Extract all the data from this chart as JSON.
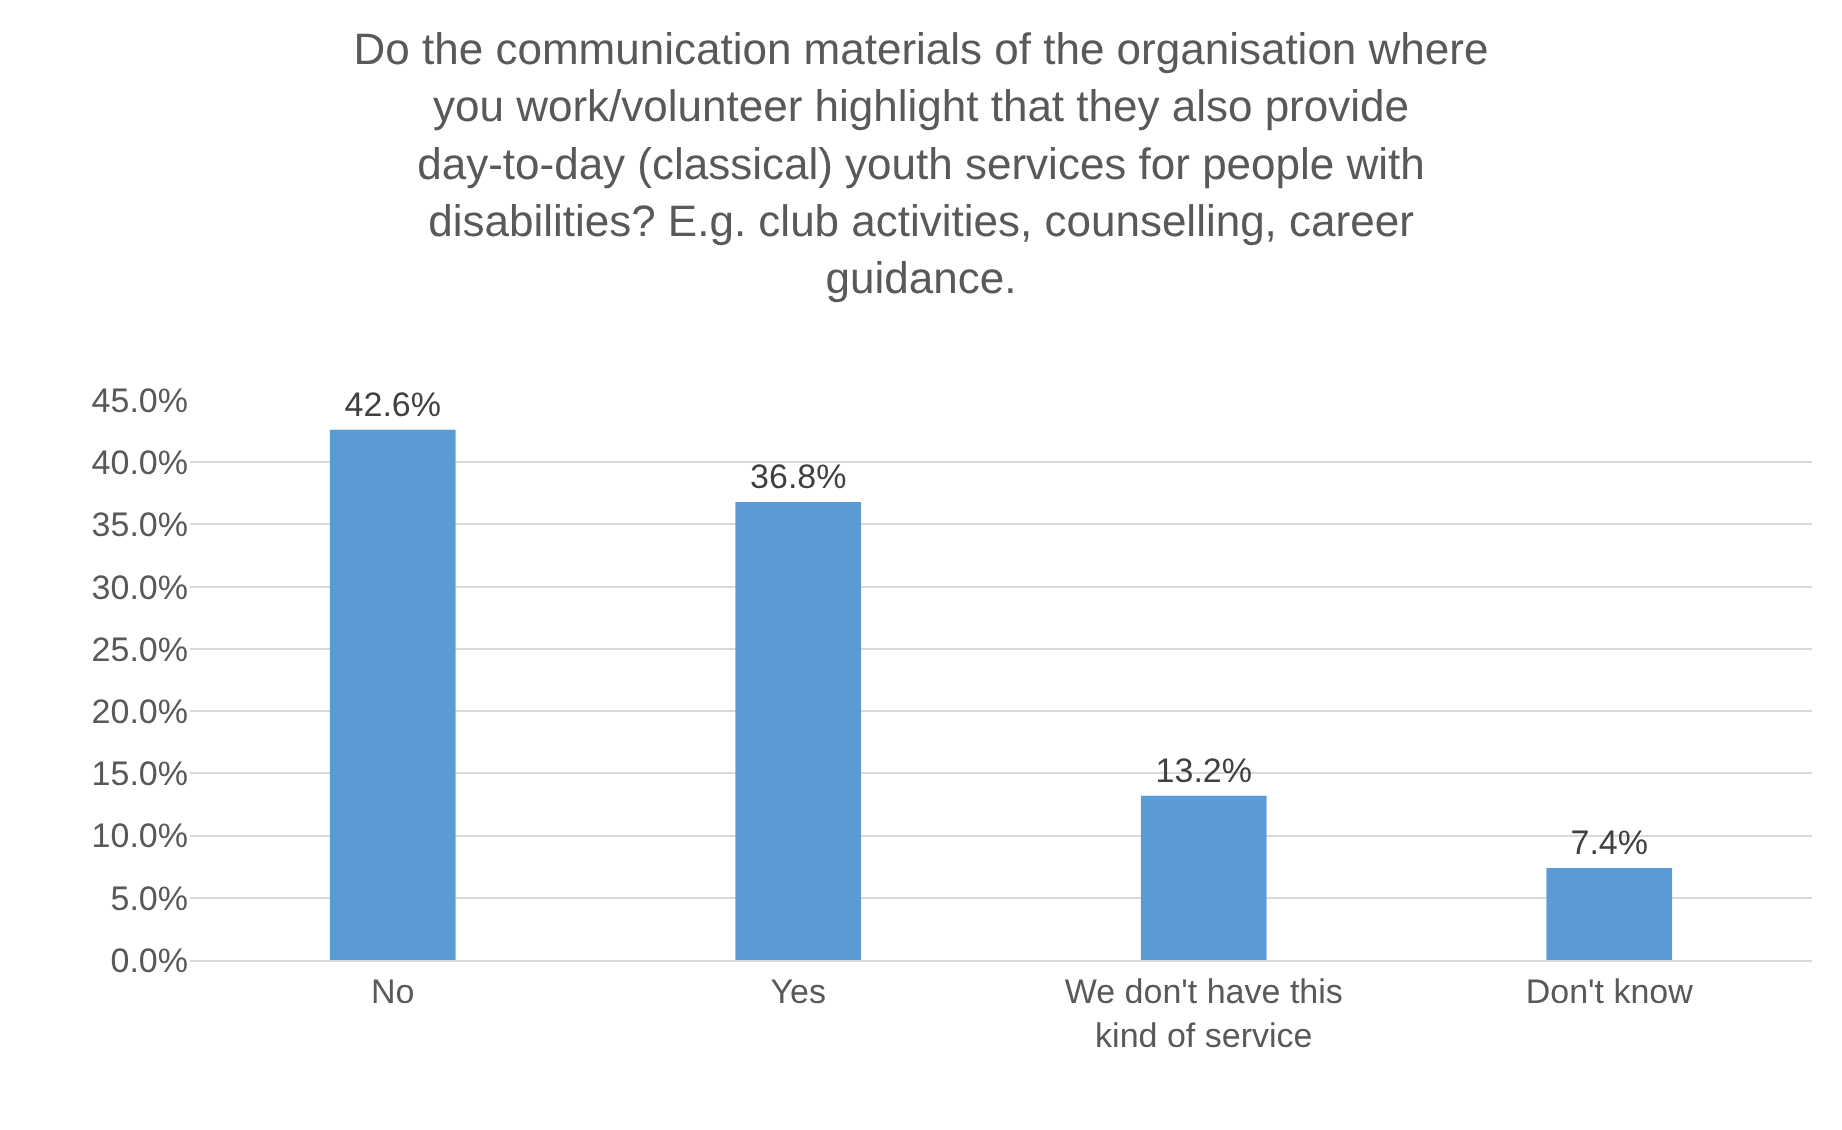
{
  "chart_data": {
    "type": "bar",
    "title": "Do the communication materials of the organisation where you work/volunteer highlight that they also provide day-to-day (classical) youth services for people with disabilities? E.g. club activities, counselling, career guidance.",
    "categories": [
      "No",
      "Yes",
      "We don't have this kind of service",
      "Don't know"
    ],
    "values": [
      42.6,
      36.8,
      13.2,
      7.4
    ],
    "value_labels": [
      "42.6%",
      "36.8%",
      "13.2%",
      "7.4%"
    ],
    "color": "#5b9bd5",
    "ylim": [
      0,
      45
    ],
    "yticks": [
      {
        "value": 0,
        "label": "0.0%"
      },
      {
        "value": 5,
        "label": "5.0%"
      },
      {
        "value": 10,
        "label": "10.0%"
      },
      {
        "value": 15,
        "label": "15.0%"
      },
      {
        "value": 20,
        "label": "20.0%"
      },
      {
        "value": 25,
        "label": "25.0%"
      },
      {
        "value": 30,
        "label": "30.0%"
      },
      {
        "value": 35,
        "label": "35.0%"
      },
      {
        "value": 40,
        "label": "40.0%"
      },
      {
        "value": 45,
        "label": "45.0%"
      }
    ],
    "grid": "y"
  }
}
